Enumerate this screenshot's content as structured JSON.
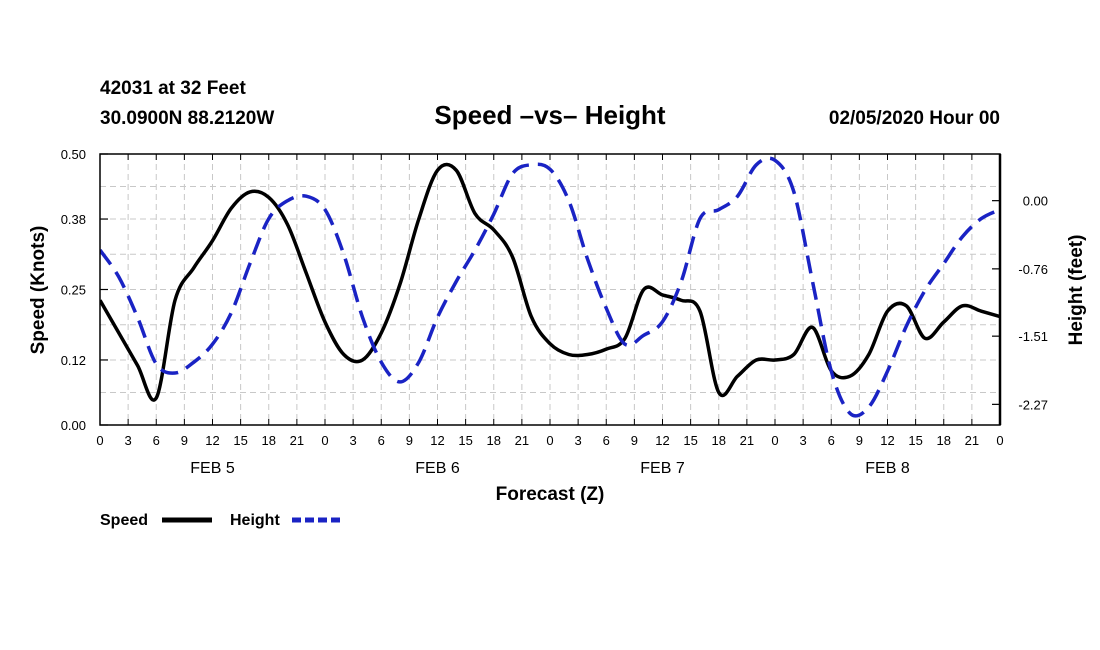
{
  "header": {
    "station": "42031 at 32 Feet",
    "coords": "30.0900N 88.2120W",
    "title": "Speed –vs– Height",
    "date": "02/05/2020 Hour 00"
  },
  "chart_data": {
    "type": "line",
    "title": "Speed –vs– Height",
    "xlabel": "Forecast (Z)",
    "ylabel_left": "Speed (Knots)",
    "ylabel_right": "Height (feet)",
    "x_range_hours": [
      0,
      96
    ],
    "x_tick_labels": [
      "0",
      "3",
      "6",
      "9",
      "12",
      "15",
      "18",
      "21",
      "0",
      "3",
      "6",
      "9",
      "12",
      "15",
      "18",
      "21",
      "0",
      "3",
      "6",
      "9",
      "12",
      "15",
      "18",
      "21",
      "0",
      "3",
      "6",
      "9",
      "12",
      "15",
      "18",
      "21",
      "0"
    ],
    "day_labels": [
      {
        "label": "FEB 5",
        "hour": 12
      },
      {
        "label": "FEB 6",
        "hour": 36
      },
      {
        "label": "FEB 7",
        "hour": 60
      },
      {
        "label": "FEB 8",
        "hour": 84
      }
    ],
    "y_left": {
      "ticks": [
        0.0,
        0.12,
        0.25,
        0.38,
        0.5
      ],
      "tick_labels": [
        "0.00",
        "0.12",
        "0.25",
        "0.38",
        "0.50"
      ],
      "range": [
        0,
        0.5
      ]
    },
    "y_right": {
      "ticks": [
        0.0,
        -0.76,
        -1.51,
        -2.27
      ],
      "tick_labels": [
        "0.00",
        "-0.76",
        "-1.51",
        "-2.27"
      ],
      "range": [
        -2.5,
        0.52
      ]
    },
    "grid": true,
    "series": [
      {
        "name": "Speed",
        "axis": "left",
        "color": "#000000",
        "style": "solid",
        "x": [
          0,
          2,
          4,
          6,
          8,
          10,
          12,
          14,
          16,
          18,
          20,
          22,
          24,
          26,
          28,
          30,
          32,
          34,
          36,
          38,
          40,
          42,
          44,
          46,
          48,
          50,
          52,
          54,
          56,
          58,
          60,
          62,
          64,
          66,
          68,
          70,
          72,
          74,
          76,
          78,
          80,
          82,
          84,
          86,
          88,
          90,
          92,
          94,
          96
        ],
        "y": [
          0.23,
          0.17,
          0.11,
          0.05,
          0.23,
          0.29,
          0.34,
          0.4,
          0.43,
          0.42,
          0.37,
          0.28,
          0.19,
          0.13,
          0.12,
          0.17,
          0.26,
          0.38,
          0.47,
          0.47,
          0.39,
          0.36,
          0.31,
          0.2,
          0.15,
          0.13,
          0.13,
          0.14,
          0.16,
          0.25,
          0.24,
          0.23,
          0.21,
          0.06,
          0.09,
          0.12,
          0.12,
          0.13,
          0.18,
          0.1,
          0.09,
          0.13,
          0.21,
          0.22,
          0.16,
          0.19,
          0.22,
          0.21,
          0.2
        ]
      },
      {
        "name": "Height",
        "axis": "right",
        "color": "#1a23c4",
        "style": "dashed",
        "x": [
          0,
          2,
          4,
          6,
          8,
          10,
          12,
          14,
          16,
          18,
          20,
          22,
          24,
          26,
          28,
          30,
          32,
          34,
          36,
          38,
          40,
          42,
          44,
          46,
          48,
          50,
          52,
          54,
          56,
          58,
          60,
          62,
          64,
          66,
          68,
          70,
          72,
          74,
          76,
          78,
          80,
          82,
          84,
          86,
          88,
          90,
          92,
          94,
          96
        ],
        "y": [
          -0.55,
          -0.85,
          -1.3,
          -1.82,
          -1.92,
          -1.8,
          -1.6,
          -1.25,
          -0.7,
          -0.2,
          0.0,
          0.05,
          -0.1,
          -0.6,
          -1.3,
          -1.8,
          -2.02,
          -1.8,
          -1.3,
          -0.9,
          -0.55,
          -0.15,
          0.3,
          0.4,
          0.35,
          0.0,
          -0.65,
          -1.2,
          -1.6,
          -1.5,
          -1.35,
          -0.9,
          -0.2,
          -0.1,
          0.05,
          0.4,
          0.45,
          0.1,
          -0.9,
          -1.9,
          -2.37,
          -2.3,
          -1.9,
          -1.4,
          -1.0,
          -0.7,
          -0.4,
          -0.2,
          -0.1
        ]
      }
    ],
    "legend": [
      {
        "label": "Speed",
        "color": "#000000",
        "style": "solid"
      },
      {
        "label": "Height",
        "color": "#1a23c4",
        "style": "dashed"
      }
    ]
  }
}
